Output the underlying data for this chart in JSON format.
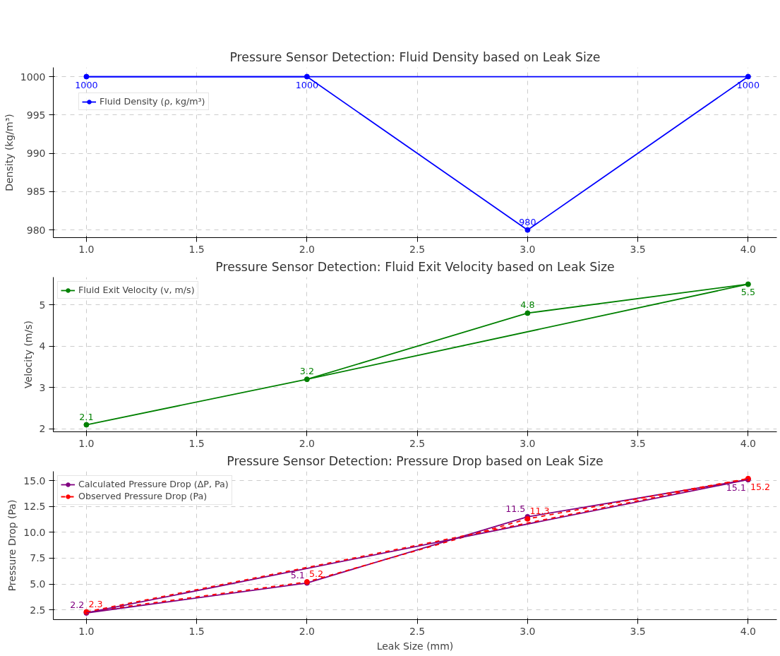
{
  "chart_data": [
    {
      "type": "line",
      "title": "Pressure Sensor Detection: Fluid Density based on Leak Size",
      "ylabel": "Density (kg/m³)",
      "series": [
        {
          "name": "Fluid Density (ρ, kg/m³)",
          "color": "#0000ff",
          "x": [
            1,
            2,
            3,
            4
          ],
          "values": [
            1000,
            1000,
            980,
            1000
          ],
          "value_labels": [
            "1000",
            "1000",
            "980",
            "1000"
          ]
        },
        {
          "color": "#0000ff",
          "marker": "none",
          "x": [
            1,
            4
          ],
          "values": [
            1000,
            1000
          ],
          "value_labels": [
            null,
            null
          ]
        }
      ],
      "xlim": [
        0.85,
        4.13
      ],
      "ylim": [
        979,
        1001.2
      ],
      "xticks": [
        {
          "value": 1,
          "label": "1.0"
        },
        1.5,
        {
          "value": 2,
          "label": "2.0"
        },
        2.5,
        {
          "value": 3,
          "label": "3.0"
        },
        3.5,
        {
          "value": 4,
          "label": "4.0"
        }
      ],
      "yticks": [
        980,
        985,
        990,
        995,
        1000
      ],
      "grid": true,
      "legend": "top left",
      "marker": "circle"
    },
    {
      "type": "line",
      "title": "Pressure Sensor Detection: Fluid Exit Velocity based on Leak Size",
      "ylabel": "Velocity (m/s)",
      "series": [
        {
          "name": "Fluid Exit Velocity (v, m/s)",
          "color": "#008000",
          "x": [
            1,
            2,
            3,
            4
          ],
          "values": [
            2.1,
            3.2,
            4.8,
            5.5
          ],
          "value_labels": [
            "2.1",
            "3.2",
            "4.8",
            "5.5"
          ]
        },
        {
          "color": "#008000",
          "marker": "none",
          "x": [
            2,
            4
          ],
          "values": [
            3.2,
            5.5
          ],
          "value_labels": [
            null,
            null
          ]
        }
      ],
      "xlim": [
        0.85,
        4.13
      ],
      "ylim": [
        1.93,
        5.67
      ],
      "xticks": [
        {
          "value": 1,
          "label": "1.0"
        },
        1.5,
        {
          "value": 2,
          "label": "2.0"
        },
        2.5,
        {
          "value": 3,
          "label": "3.0"
        },
        3.5,
        {
          "value": 4,
          "label": "4.0"
        }
      ],
      "yticks": [
        2,
        3,
        4,
        5
      ],
      "grid": true,
      "legend": "top left",
      "marker": "circle"
    },
    {
      "type": "line",
      "title": "Pressure Sensor Detection: Pressure Drop based on Leak Size",
      "xlabel": "Leak Size (mm)",
      "ylabel": "Pressure Drop (Pa)",
      "series": [
        {
          "name": "Calculated Pressure Drop (ΔP, Pa)",
          "color": "#800080",
          "x": [
            1,
            2,
            3,
            4
          ],
          "values": [
            2.2,
            5.1,
            11.5,
            15.1
          ],
          "value_labels": [
            "2.2",
            "5.1",
            "11.5",
            "15.1"
          ]
        },
        {
          "name": "Observed Pressure Drop (Pa)",
          "color": "#ff0000",
          "line_style": "dashed",
          "x": [
            1,
            2,
            3,
            4
          ],
          "values": [
            2.3,
            5.2,
            11.3,
            15.2
          ],
          "value_labels": [
            "2.3",
            "5.2",
            "11.3",
            "15.2"
          ]
        },
        {
          "color": "#800080",
          "marker": "none",
          "x": [
            1,
            4
          ],
          "values": [
            2.2,
            15.1
          ],
          "value_labels": [
            null,
            null
          ]
        },
        {
          "color": "#ff0000",
          "marker": "none",
          "line_style": "dashed",
          "x": [
            1,
            4
          ],
          "values": [
            2.3,
            15.2
          ],
          "value_labels": [
            null,
            null
          ]
        }
      ],
      "xlim": [
        0.85,
        4.13
      ],
      "ylim": [
        1.55,
        15.9
      ],
      "xticks": [
        {
          "value": 1,
          "label": "1.0"
        },
        1.5,
        {
          "value": 2,
          "label": "2.0"
        },
        2.5,
        {
          "value": 3,
          "label": "3.0"
        },
        3.5,
        {
          "value": 4,
          "label": "4.0"
        }
      ],
      "yticks": [
        {
          "value": 2.5,
          "label": "2.5"
        },
        {
          "value": 5,
          "label": "5.0"
        },
        {
          "value": 7.5,
          "label": "7.5"
        },
        {
          "value": 10,
          "label": "10.0"
        },
        {
          "value": 12.5,
          "label": "12.5"
        },
        {
          "value": 15,
          "label": "15.0"
        }
      ],
      "grid": true,
      "legend": "top left",
      "marker": "circle"
    }
  ]
}
